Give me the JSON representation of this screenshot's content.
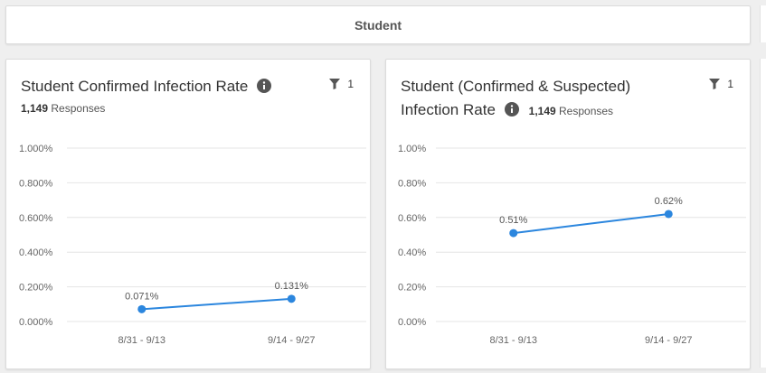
{
  "section": {
    "title": "Student"
  },
  "colors": {
    "series": "#2b86de",
    "grid": "#e4e4e4",
    "text": "#666666"
  },
  "cards": [
    {
      "title": "Student Confirmed Infection Rate",
      "responses_count": "1,149",
      "responses_label": "Responses",
      "filter_count": "1",
      "chart_data": {
        "type": "line",
        "categories": [
          "8/31 - 9/13",
          "9/14 - 9/27"
        ],
        "series": [
          {
            "values": [
              0.071,
              0.131
            ]
          }
        ],
        "data_labels": [
          "0.071%",
          "0.131%"
        ],
        "yticks": [
          "0.000%",
          "0.200%",
          "0.400%",
          "0.600%",
          "0.800%",
          "1.000%"
        ],
        "ylim": [
          0,
          1.0
        ],
        "grid": true
      }
    },
    {
      "title": "Student (Confirmed & Suspected) Infection Rate",
      "title_line1": "Student (Confirmed & Suspected)",
      "title_line2": "Infection Rate",
      "responses_count": "1,149",
      "responses_label": "Responses",
      "filter_count": "1",
      "chart_data": {
        "type": "line",
        "categories": [
          "8/31 - 9/13",
          "9/14 - 9/27"
        ],
        "series": [
          {
            "values": [
              0.51,
              0.62
            ]
          }
        ],
        "data_labels": [
          "0.51%",
          "0.62%"
        ],
        "yticks": [
          "0.00%",
          "0.20%",
          "0.40%",
          "0.60%",
          "0.80%",
          "1.00%"
        ],
        "ylim": [
          0,
          1.0
        ],
        "grid": true
      }
    }
  ]
}
